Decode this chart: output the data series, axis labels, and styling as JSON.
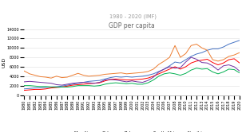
{
  "title": "GDP per capita",
  "subtitle": "1980 - 2020 (IMF)",
  "ylabel": "USD",
  "years": [
    1980,
    1981,
    1982,
    1983,
    1984,
    1985,
    1986,
    1987,
    1988,
    1989,
    1990,
    1991,
    1992,
    1993,
    1994,
    1995,
    1996,
    1997,
    1998,
    1999,
    2000,
    2001,
    2002,
    2003,
    2004,
    2005,
    2006,
    2007,
    2008,
    2009,
    2010,
    2011,
    2012,
    2013,
    2014,
    2015,
    2016,
    2017,
    2018,
    2019,
    2020
  ],
  "series": {
    "Mauritius": [
      1300,
      1400,
      1500,
      1550,
      1600,
      1700,
      1750,
      1900,
      2100,
      2300,
      2500,
      2700,
      2900,
      3000,
      3100,
      3400,
      3700,
      3900,
      3800,
      3900,
      3800,
      3900,
      4000,
      4200,
      4500,
      5000,
      5500,
      6200,
      7000,
      6800,
      7500,
      8200,
      8700,
      9000,
      9500,
      9800,
      9800,
      10200,
      10800,
      11200,
      11600
    ],
    "Gabon": [
      5100,
      4500,
      4200,
      3900,
      3800,
      3600,
      4000,
      3700,
      3800,
      4200,
      4600,
      4200,
      4000,
      4100,
      4200,
      4400,
      4500,
      4600,
      4700,
      4500,
      4600,
      4700,
      4800,
      5000,
      5500,
      6500,
      7200,
      8000,
      10500,
      8000,
      8800,
      10500,
      10800,
      10000,
      9500,
      7500,
      7200,
      7500,
      8200,
      8500,
      9000
    ],
    "Botswana": [
      1000,
      1100,
      1200,
      1200,
      1300,
      1500,
      1600,
      1700,
      1900,
      2100,
      2200,
      2300,
      2400,
      2500,
      2600,
      3000,
      3300,
      3400,
      3300,
      3200,
      3200,
      3300,
      3400,
      3600,
      4000,
      4500,
      5000,
      5500,
      6000,
      5500,
      6000,
      6800,
      7200,
      7400,
      7600,
      6900,
      6400,
      6800,
      7500,
      7700,
      6800
    ],
    "South Africa": [
      2800,
      2900,
      2800,
      2700,
      2600,
      2500,
      2200,
      2100,
      2300,
      2500,
      2600,
      2700,
      2600,
      2500,
      2700,
      3200,
      3300,
      3200,
      3000,
      2800,
      3000,
      2800,
      2700,
      3100,
      3800,
      4900,
      5500,
      6000,
      5700,
      5800,
      7000,
      8000,
      7600,
      6900,
      6800,
      6200,
      5300,
      6200,
      6400,
      6000,
      5100
    ],
    "Namibia": [
      2000,
      2000,
      1900,
      1800,
      1800,
      1700,
      1700,
      1700,
      1700,
      1800,
      2000,
      2000,
      2000,
      1900,
      2000,
      2300,
      2500,
      2600,
      2500,
      2400,
      2500,
      2300,
      2300,
      2600,
      3200,
      4000,
      4500,
      4700,
      4500,
      4200,
      4600,
      5300,
      5700,
      5500,
      5600,
      4900,
      4500,
      4900,
      5500,
      5400,
      4700
    ]
  },
  "colors": {
    "Mauritius": "#4472C4",
    "Gabon": "#ED7D31",
    "Botswana": "#FF0000",
    "South Africa": "#7030A0",
    "Namibia": "#00B050"
  },
  "ylim": [
    0,
    14000
  ],
  "yticks": [
    0,
    2000,
    4000,
    6000,
    8000,
    10000,
    12000,
    14000
  ],
  "background_color": "#ffffff",
  "grid_color": "#dddddd",
  "title_fontsize": 5.5,
  "subtitle_fontsize": 4.8,
  "label_fontsize": 4.5,
  "tick_fontsize": 3.5,
  "legend_fontsize": 3.8,
  "linewidth": 0.7
}
